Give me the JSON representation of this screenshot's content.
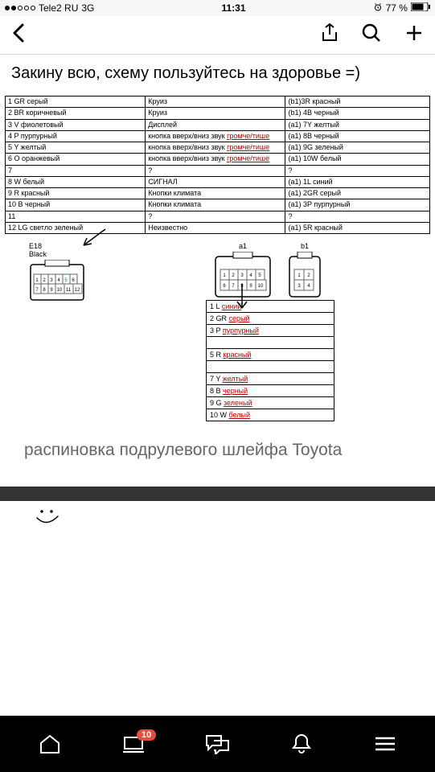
{
  "status": {
    "carrier": "Tele2 RU",
    "network": "3G",
    "time": "11:31",
    "battery": "77 %",
    "alarm_icon": "⏰"
  },
  "intro": "Закину всю, схему пользуйтесь на здоровье =)",
  "table1": {
    "columns_widths": [
      "33%",
      "33%",
      "34%"
    ],
    "rows": [
      [
        "1 GR серый",
        "Круиз",
        "(b1)3R красный"
      ],
      [
        "2 BR коричневый",
        "Круиз",
        "(b1) 4B черный"
      ],
      [
        "3 V   фиолетовый",
        "Дисплей",
        "(a1) 7Y желтый"
      ],
      [
        "4 P пурпурный",
        "кнопка вверх/вниз звук <u>громче/тише</u>",
        "(a1) 8B черный"
      ],
      [
        "5 Y   желтый",
        "кнопка вверх/вниз звук <u>громче/тише</u>",
        "(a1) 9G зеленый"
      ],
      [
        "6 O оранжевый",
        "кнопка вверх/вниз звук <u>громче/тише</u>",
        "(a1) 10W белый"
      ],
      [
        "7",
        "?",
        "?"
      ],
      [
        "8 W белый",
        "СИГНАЛ",
        "(a1) 1L синий"
      ],
      [
        "9 R красный",
        "Кнопки климата",
        "(a1) 2GR серый"
      ],
      [
        "10 B  черный",
        "Кнопки климата",
        "(a1) 3P пурпурный"
      ],
      [
        "11",
        "?",
        "?"
      ],
      [
        "12 LG светло зеленый",
        "Неизвестно",
        "(a1) 5R красный"
      ]
    ]
  },
  "connectors": {
    "e18": "E18\nBlack",
    "a1": "a1",
    "b1": "b1"
  },
  "table2": {
    "rows": [
      "1 L <u>синий</u>",
      "2 GR <u>серый</u>",
      "3 P <u>пурпурный</u>",
      "",
      "5 R <u>красный</u>",
      "",
      "7 Y <u>желтый</u>",
      "8 B <u>черный</u>",
      "9 G <u>зеленый</u>",
      "10 W <u>белый</u>"
    ]
  },
  "caption": "распиновка подрулевого шлейфа Toyota",
  "tabbar": {
    "badge_count": "10"
  },
  "colors": {
    "bg": "#ffffff",
    "status_bg": "#f6f6f6",
    "tab_bg": "#000000",
    "badge": "#e74c3c",
    "underline_red": "#c00000",
    "caption_grey": "#666666"
  }
}
